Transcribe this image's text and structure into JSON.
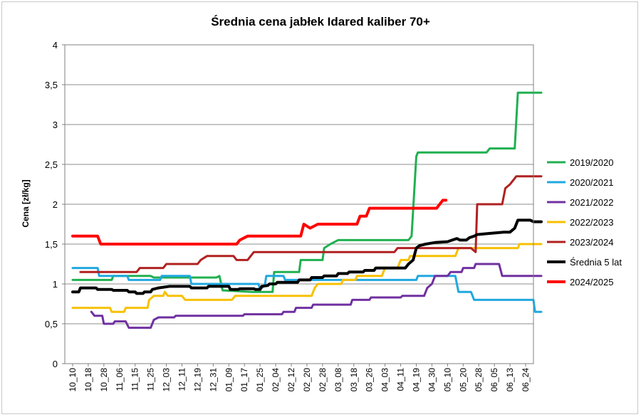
{
  "chart_data": {
    "type": "line",
    "title": "Średnia cena jabłek Idared kaliber 70+",
    "ylabel": "Cena [zł/kg]",
    "xlabel": "",
    "ylim": [
      0,
      4
    ],
    "yticks": [
      "0",
      "0,5",
      "1",
      "1,5",
      "2",
      "2,5",
      "3",
      "3,5",
      "4"
    ],
    "grid": "horizontal",
    "legend_position": "right",
    "x_ticks": [
      "10_10",
      "10_18",
      "10_28",
      "11_06",
      "11_15",
      "11_25",
      "12_03",
      "12_11",
      "12_19",
      "12_31",
      "01_09",
      "01_17",
      "01_25",
      "02_04",
      "02_12",
      "02_20",
      "02_28",
      "03_08",
      "03_18",
      "03_26",
      "04_03",
      "04_11",
      "04_19",
      "04_30",
      "05_10",
      "05_20",
      "05_28",
      "06_05",
      "06_13",
      "06_24"
    ],
    "series": [
      {
        "name": "2019/2020",
        "color": "#20b050",
        "width": 3,
        "points": [
          [
            0,
            1.05
          ],
          [
            2.5,
            1.05
          ],
          [
            2.6,
            1.1
          ],
          [
            5,
            1.1
          ],
          [
            5.2,
            1.08
          ],
          [
            9.2,
            1.08
          ],
          [
            9.4,
            1.1
          ],
          [
            9.6,
            0.92
          ],
          [
            11.5,
            0.9
          ],
          [
            12.8,
            0.9
          ],
          [
            12.9,
            1.15
          ],
          [
            14.5,
            1.15
          ],
          [
            14.6,
            1.3
          ],
          [
            16,
            1.3
          ],
          [
            16.1,
            1.45
          ],
          [
            16.5,
            1.5
          ],
          [
            17,
            1.55
          ],
          [
            21.5,
            1.55
          ],
          [
            21.7,
            1.6
          ],
          [
            22,
            2.6
          ],
          [
            22.1,
            2.65
          ],
          [
            26.5,
            2.65
          ],
          [
            26.7,
            2.7
          ],
          [
            28.3,
            2.7
          ],
          [
            28.5,
            3.4
          ],
          [
            30,
            3.4
          ]
        ]
      },
      {
        "name": "2020/2021",
        "color": "#20a8e0",
        "width": 3,
        "points": [
          [
            0,
            1.2
          ],
          [
            1.6,
            1.2
          ],
          [
            1.7,
            1.1
          ],
          [
            3.5,
            1.1
          ],
          [
            3.6,
            1.05
          ],
          [
            5.6,
            1.05
          ],
          [
            5.7,
            1.1
          ],
          [
            7.5,
            1.1
          ],
          [
            7.6,
            1.0
          ],
          [
            11.9,
            1.0
          ],
          [
            12,
            0.93
          ],
          [
            12.3,
            0.98
          ],
          [
            12.4,
            1.1
          ],
          [
            13.5,
            1.1
          ],
          [
            13.6,
            1.05
          ],
          [
            22,
            1.05
          ],
          [
            22.1,
            1.1
          ],
          [
            24.5,
            1.1
          ],
          [
            24.7,
            0.9
          ],
          [
            25.5,
            0.9
          ],
          [
            25.7,
            0.8
          ],
          [
            29.5,
            0.8
          ],
          [
            29.6,
            0.65
          ],
          [
            30,
            0.65
          ]
        ]
      },
      {
        "name": "2021/2022",
        "color": "#7030a0",
        "width": 3,
        "points": [
          [
            1.2,
            0.65
          ],
          [
            1.4,
            0.6
          ],
          [
            1.9,
            0.6
          ],
          [
            2,
            0.5
          ],
          [
            2.6,
            0.5
          ],
          [
            2.7,
            0.53
          ],
          [
            3.4,
            0.53
          ],
          [
            3.6,
            0.45
          ],
          [
            5,
            0.45
          ],
          [
            5.2,
            0.55
          ],
          [
            5.5,
            0.58
          ],
          [
            6.5,
            0.58
          ],
          [
            6.6,
            0.6
          ],
          [
            10.9,
            0.6
          ],
          [
            11,
            0.62
          ],
          [
            13.4,
            0.62
          ],
          [
            13.5,
            0.65
          ],
          [
            14.2,
            0.65
          ],
          [
            14.3,
            0.7
          ],
          [
            15.3,
            0.7
          ],
          [
            15.4,
            0.74
          ],
          [
            17.8,
            0.74
          ],
          [
            17.9,
            0.8
          ],
          [
            19,
            0.8
          ],
          [
            19.1,
            0.83
          ],
          [
            21,
            0.83
          ],
          [
            21.1,
            0.85
          ],
          [
            22.5,
            0.85
          ],
          [
            22.7,
            0.95
          ],
          [
            23,
            1.0
          ],
          [
            23.2,
            1.1
          ],
          [
            24,
            1.1
          ],
          [
            24.2,
            1.15
          ],
          [
            24.9,
            1.15
          ],
          [
            25,
            1.2
          ],
          [
            25.7,
            1.2
          ],
          [
            25.8,
            1.25
          ],
          [
            27.3,
            1.25
          ],
          [
            27.5,
            1.1
          ],
          [
            30,
            1.1
          ]
        ]
      },
      {
        "name": "2022/2023",
        "color": "#f8c000",
        "width": 3,
        "points": [
          [
            0,
            0.7
          ],
          [
            2.4,
            0.7
          ],
          [
            2.5,
            0.65
          ],
          [
            3.3,
            0.65
          ],
          [
            3.4,
            0.7
          ],
          [
            4.8,
            0.7
          ],
          [
            4.9,
            0.8
          ],
          [
            5.2,
            0.85
          ],
          [
            5.8,
            0.85
          ],
          [
            5.9,
            0.9
          ],
          [
            6.1,
            0.85
          ],
          [
            7,
            0.85
          ],
          [
            7.2,
            0.8
          ],
          [
            10.2,
            0.8
          ],
          [
            10.4,
            0.85
          ],
          [
            15.3,
            0.85
          ],
          [
            15.5,
            0.95
          ],
          [
            15.7,
            1.0
          ],
          [
            17.2,
            1.0
          ],
          [
            17.3,
            1.05
          ],
          [
            18.1,
            1.05
          ],
          [
            18.2,
            1.1
          ],
          [
            19.8,
            1.1
          ],
          [
            20,
            1.2
          ],
          [
            20.8,
            1.2
          ],
          [
            21,
            1.3
          ],
          [
            21.5,
            1.3
          ],
          [
            21.6,
            1.35
          ],
          [
            24.5,
            1.35
          ],
          [
            24.7,
            1.45
          ],
          [
            28.5,
            1.45
          ],
          [
            28.6,
            1.5
          ],
          [
            30,
            1.5
          ]
        ]
      },
      {
        "name": "2023/2024",
        "color": "#b02020",
        "width": 3,
        "points": [
          [
            0.5,
            1.15
          ],
          [
            4.1,
            1.15
          ],
          [
            4.3,
            1.2
          ],
          [
            5.8,
            1.2
          ],
          [
            6,
            1.25
          ],
          [
            8,
            1.25
          ],
          [
            8.2,
            1.3
          ],
          [
            8.6,
            1.35
          ],
          [
            10.3,
            1.35
          ],
          [
            10.5,
            1.3
          ],
          [
            11.2,
            1.3
          ],
          [
            11.4,
            1.35
          ],
          [
            11.6,
            1.4
          ],
          [
            20.6,
            1.4
          ],
          [
            20.8,
            1.45
          ],
          [
            25.5,
            1.45
          ],
          [
            25.8,
            1.4
          ],
          [
            25.9,
            2.0
          ],
          [
            27.5,
            2.0
          ],
          [
            27.7,
            2.2
          ],
          [
            28,
            2.25
          ],
          [
            28.2,
            2.3
          ],
          [
            28.4,
            2.35
          ],
          [
            30,
            2.35
          ]
        ]
      },
      {
        "name": "Średnia 5 lat",
        "color": "#000000",
        "width": 4,
        "points": [
          [
            0,
            0.9
          ],
          [
            0.4,
            0.9
          ],
          [
            0.5,
            0.95
          ],
          [
            1.5,
            0.95
          ],
          [
            1.6,
            0.93
          ],
          [
            2.5,
            0.93
          ],
          [
            2.6,
            0.92
          ],
          [
            3.5,
            0.92
          ],
          [
            3.6,
            0.9
          ],
          [
            4,
            0.9
          ],
          [
            4.1,
            0.88
          ],
          [
            4.5,
            0.88
          ],
          [
            4.6,
            0.9
          ],
          [
            5,
            0.9
          ],
          [
            5.1,
            0.93
          ],
          [
            5.5,
            0.95
          ],
          [
            6.2,
            0.97
          ],
          [
            7.5,
            0.97
          ],
          [
            7.6,
            0.95
          ],
          [
            8.6,
            0.95
          ],
          [
            8.7,
            0.97
          ],
          [
            10,
            0.97
          ],
          [
            10.1,
            0.93
          ],
          [
            10.6,
            0.93
          ],
          [
            10.7,
            0.94
          ],
          [
            11.6,
            0.94
          ],
          [
            11.7,
            0.93
          ],
          [
            12,
            0.93
          ],
          [
            12.1,
            0.97
          ],
          [
            12.5,
            0.98
          ],
          [
            12.6,
            1.0
          ],
          [
            13,
            1.0
          ],
          [
            13.1,
            1.02
          ],
          [
            14.4,
            1.02
          ],
          [
            14.5,
            1.05
          ],
          [
            15.2,
            1.05
          ],
          [
            15.3,
            1.08
          ],
          [
            16,
            1.08
          ],
          [
            16.1,
            1.1
          ],
          [
            16.9,
            1.1
          ],
          [
            17,
            1.13
          ],
          [
            17.6,
            1.13
          ],
          [
            17.7,
            1.15
          ],
          [
            18.6,
            1.15
          ],
          [
            18.7,
            1.17
          ],
          [
            19.3,
            1.17
          ],
          [
            19.4,
            1.2
          ],
          [
            21.3,
            1.2
          ],
          [
            21.5,
            1.25
          ],
          [
            21.8,
            1.3
          ],
          [
            22,
            1.45
          ],
          [
            22.2,
            1.48
          ],
          [
            22.6,
            1.5
          ],
          [
            23.2,
            1.52
          ],
          [
            24,
            1.53
          ],
          [
            24.3,
            1.55
          ],
          [
            24.6,
            1.57
          ],
          [
            24.8,
            1.55
          ],
          [
            25.2,
            1.55
          ],
          [
            25.4,
            1.58
          ],
          [
            25.7,
            1.6
          ],
          [
            25.9,
            1.62
          ],
          [
            26.5,
            1.63
          ],
          [
            27.6,
            1.65
          ],
          [
            28,
            1.65
          ],
          [
            28.3,
            1.7
          ],
          [
            28.5,
            1.8
          ],
          [
            29.3,
            1.8
          ],
          [
            29.5,
            1.78
          ],
          [
            30,
            1.78
          ]
        ]
      },
      {
        "name": "2024/2025",
        "color": "#ff0000",
        "width": 4,
        "points": [
          [
            0,
            1.6
          ],
          [
            1.6,
            1.6
          ],
          [
            1.8,
            1.5
          ],
          [
            10.5,
            1.5
          ],
          [
            10.7,
            1.55
          ],
          [
            11.2,
            1.6
          ],
          [
            14.6,
            1.6
          ],
          [
            14.8,
            1.75
          ],
          [
            15.2,
            1.7
          ],
          [
            15.7,
            1.75
          ],
          [
            18.2,
            1.75
          ],
          [
            18.4,
            1.85
          ],
          [
            18.8,
            1.85
          ],
          [
            19.0,
            1.95
          ],
          [
            23.3,
            1.95
          ],
          [
            23.5,
            2.0
          ],
          [
            23.7,
            2.05
          ],
          [
            23.9,
            2.05
          ]
        ]
      }
    ]
  }
}
